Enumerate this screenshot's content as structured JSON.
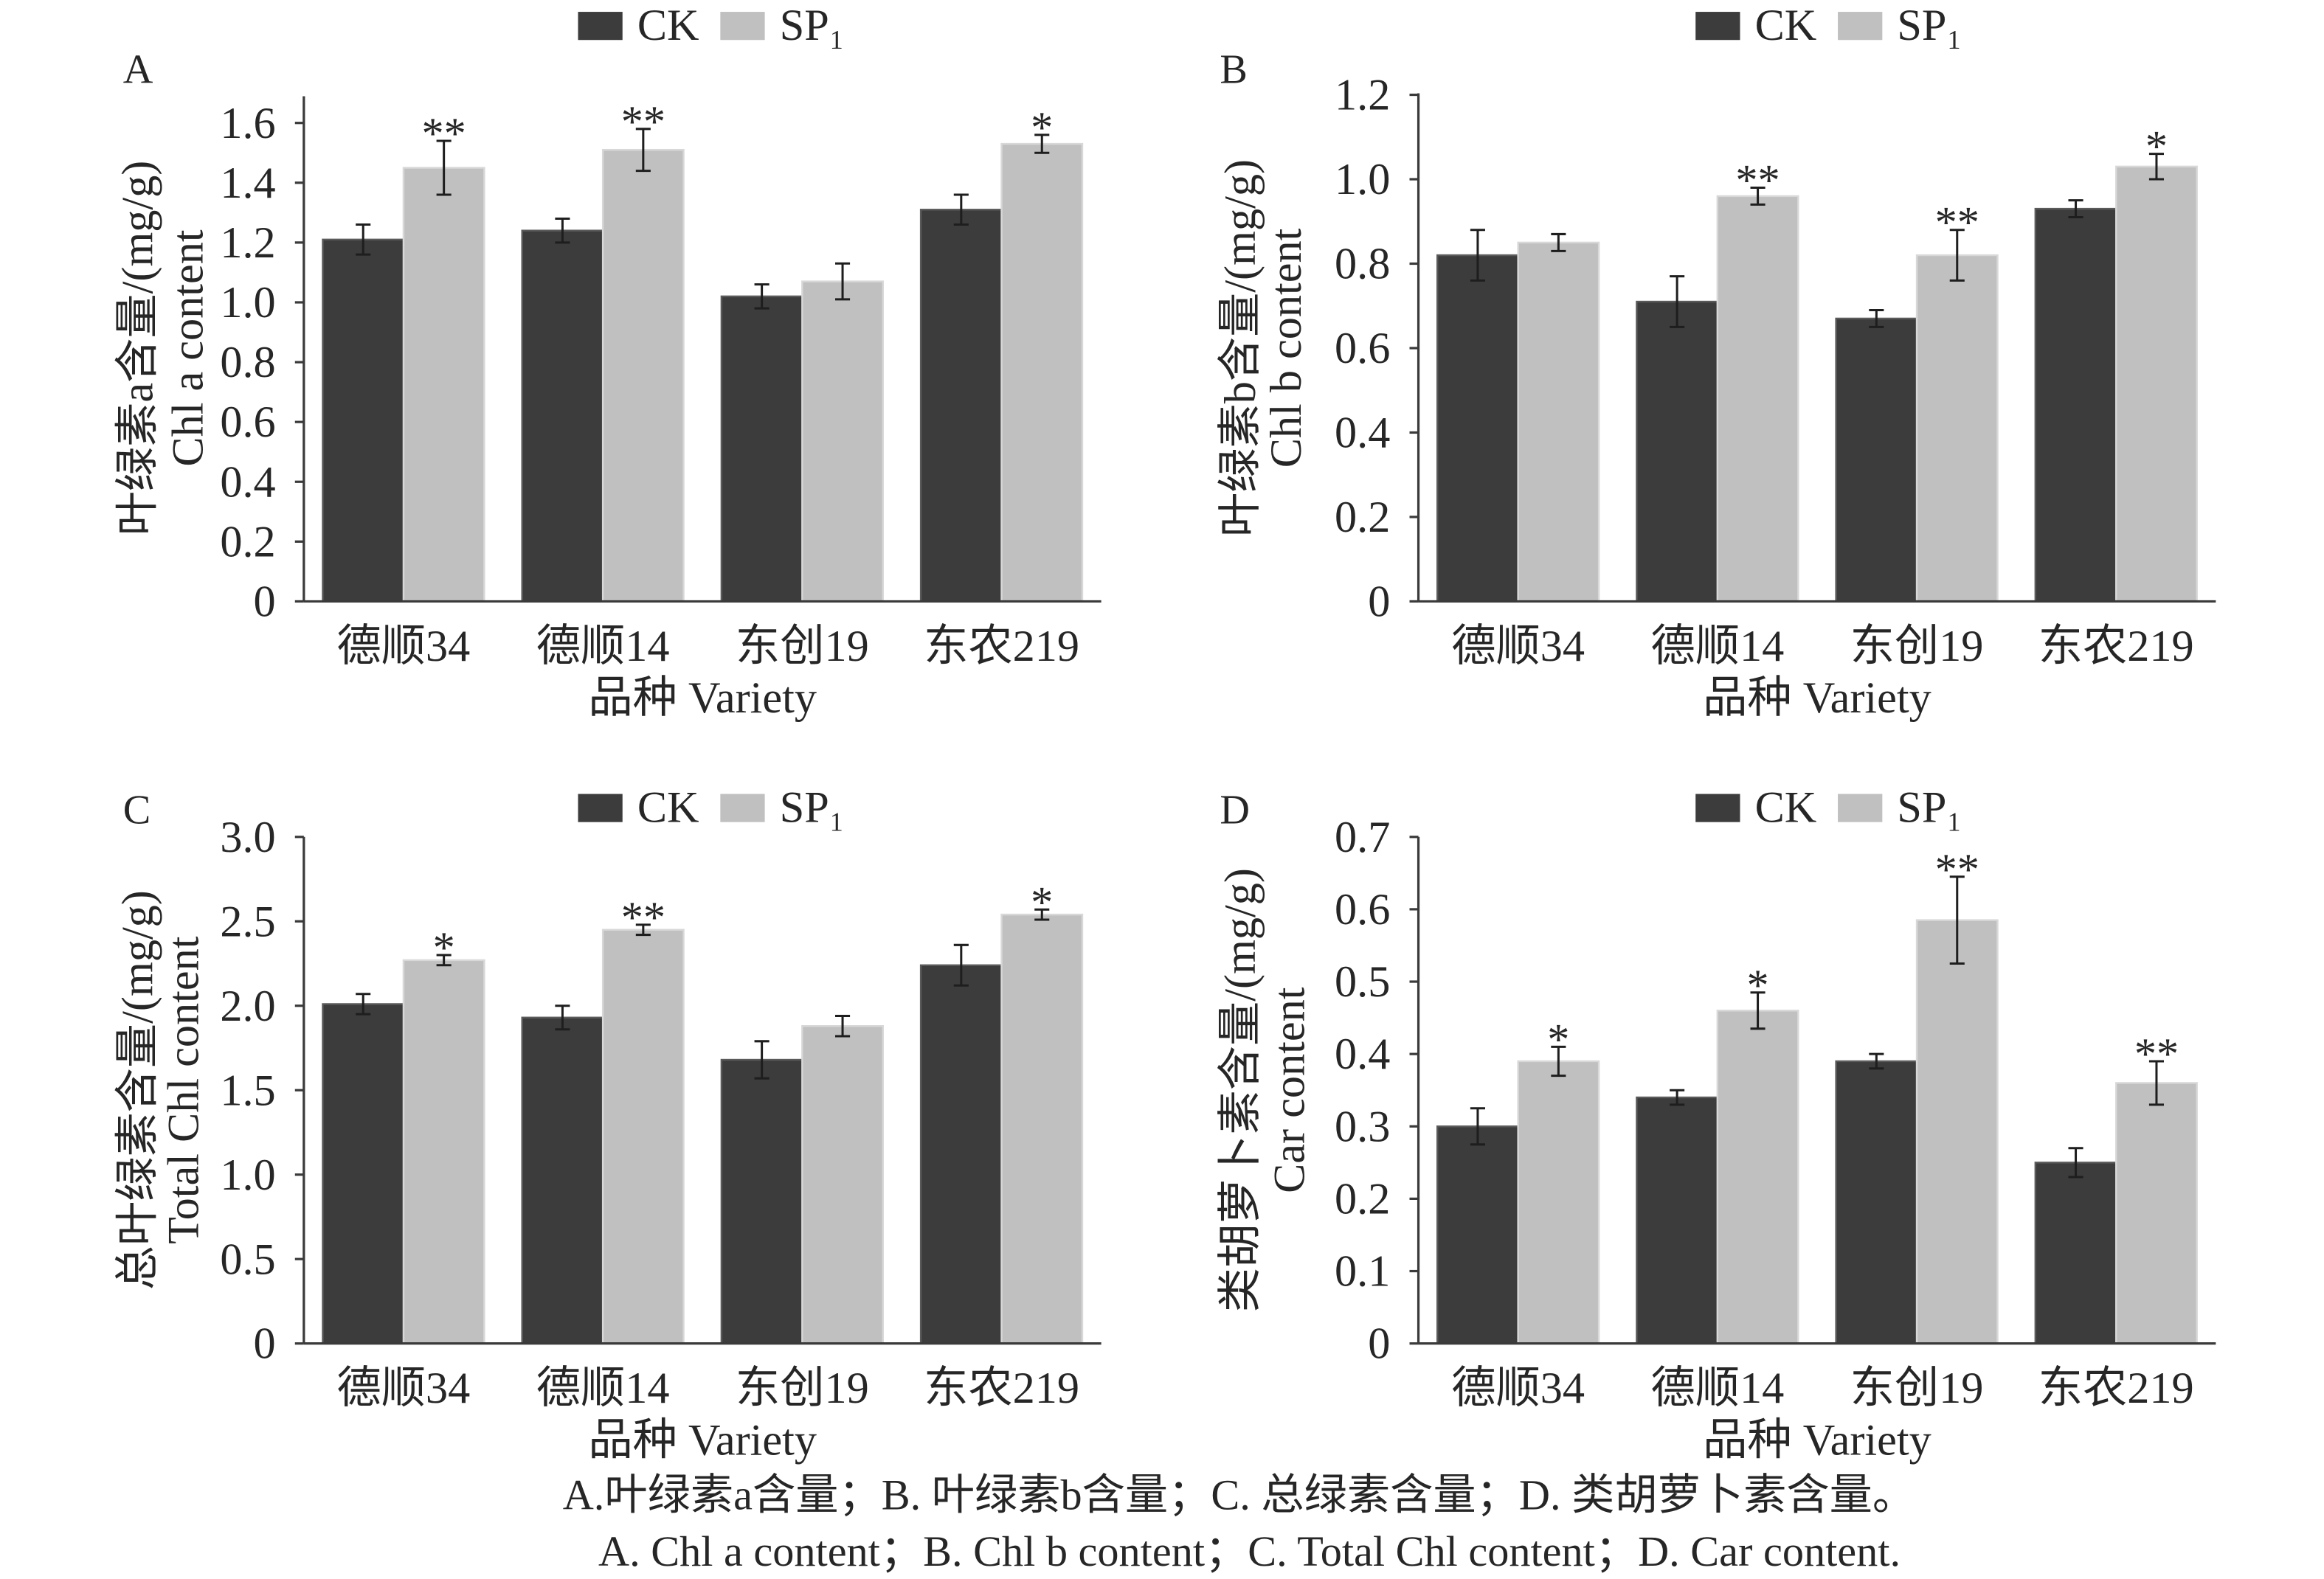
{
  "figure": {
    "caption_zh": "A.叶绿素a含量；B. 叶绿素b含量；C. 总绿素含量；D. 类胡萝卜素含量。",
    "caption_en": "A. Chl a content；B. Chl b content；C. Total Chl content；D. Car content."
  },
  "colors": {
    "CK": "#3c3c3c",
    "SP1": "#c0c0c0",
    "CK_edge": "#5a5a5a",
    "SP1_edge": "#d8d8d8"
  },
  "chart_data": [
    {
      "panel": "A",
      "type": "bar",
      "categories": [
        "德顺34",
        "德顺14",
        "东创19",
        "东农219"
      ],
      "series": [
        {
          "name": "CK",
          "values": [
            1.21,
            1.24,
            1.02,
            1.31
          ],
          "errors": [
            0.05,
            0.04,
            0.04,
            0.05
          ]
        },
        {
          "name": "SP₁",
          "values": [
            1.45,
            1.51,
            1.07,
            1.53
          ],
          "errors": [
            0.09,
            0.07,
            0.06,
            0.03
          ]
        }
      ],
      "significance": [
        "**",
        "**",
        "",
        "*"
      ],
      "xlabel": "品种 Variety",
      "ylabel": [
        "叶绿素a含量/(mg/g)",
        "Chl a content"
      ],
      "ylim": [
        0,
        1.6
      ],
      "yticks": [
        0,
        0.2,
        0.4,
        0.6,
        0.8,
        1.0,
        1.2,
        1.4,
        1.6
      ],
      "ytick_labels": [
        "0",
        "0.2",
        "0.4",
        "0.6",
        "0.8",
        "1.0",
        "1.2",
        "1.4",
        "1.6"
      ],
      "legend": "top",
      "grid": false
    },
    {
      "panel": "B",
      "type": "bar",
      "categories": [
        "德顺34",
        "德顺14",
        "东创19",
        "东农219"
      ],
      "series": [
        {
          "name": "CK",
          "values": [
            0.82,
            0.71,
            0.67,
            0.93
          ],
          "errors": [
            0.06,
            0.06,
            0.02,
            0.02
          ]
        },
        {
          "name": "SP₁",
          "values": [
            0.85,
            0.96,
            0.82,
            1.03
          ],
          "errors": [
            0.02,
            0.02,
            0.06,
            0.03
          ]
        }
      ],
      "significance": [
        "",
        "**",
        "**",
        "*"
      ],
      "xlabel": "品种 Variety",
      "ylabel": [
        "叶绿素b含量/(mg/g)",
        "Chl b content"
      ],
      "ylim": [
        0,
        1.2
      ],
      "yticks": [
        0,
        0.2,
        0.4,
        0.6,
        0.8,
        1.0,
        1.2
      ],
      "ytick_labels": [
        "0",
        "0.2",
        "0.4",
        "0.6",
        "0.8",
        "1.0",
        "1.2"
      ],
      "legend": "top",
      "grid": false
    },
    {
      "panel": "C",
      "type": "bar",
      "categories": [
        "德顺34",
        "德顺14",
        "东创19",
        "东农219"
      ],
      "series": [
        {
          "name": "CK",
          "values": [
            2.01,
            1.93,
            1.68,
            2.24
          ],
          "errors": [
            0.06,
            0.07,
            0.11,
            0.12
          ]
        },
        {
          "name": "SP₁",
          "values": [
            2.27,
            2.45,
            1.88,
            2.54
          ],
          "errors": [
            0.03,
            0.03,
            0.06,
            0.03
          ]
        }
      ],
      "significance": [
        "*",
        "**",
        "",
        "*"
      ],
      "xlabel": "品种 Variety",
      "ylabel": [
        "总叶绿素含量/(mg/g)",
        "Total Chl content"
      ],
      "ylim": [
        0,
        3.0
      ],
      "yticks": [
        0,
        0.5,
        1.0,
        1.5,
        2.0,
        2.5,
        3.0
      ],
      "ytick_labels": [
        "0",
        "0.5",
        "1.0",
        "1.5",
        "2.0",
        "2.5",
        "3.0"
      ],
      "legend": "top",
      "grid": false
    },
    {
      "panel": "D",
      "type": "bar",
      "categories": [
        "德顺34",
        "德顺14",
        "东创19",
        "东农219"
      ],
      "series": [
        {
          "name": "CK",
          "values": [
            0.3,
            0.34,
            0.39,
            0.25
          ],
          "errors": [
            0.025,
            0.01,
            0.01,
            0.02
          ]
        },
        {
          "name": "SP₁",
          "values": [
            0.39,
            0.46,
            0.585,
            0.36
          ],
          "errors": [
            0.02,
            0.025,
            0.06,
            0.03
          ]
        }
      ],
      "significance": [
        "*",
        "*",
        "**",
        "**"
      ],
      "xlabel": "品种 Variety",
      "ylabel": [
        "类胡萝卜素含量/(mg/g)",
        "Car content"
      ],
      "ylim": [
        0,
        0.7
      ],
      "yticks": [
        0,
        0.1,
        0.2,
        0.3,
        0.4,
        0.5,
        0.6,
        0.7
      ],
      "ytick_labels": [
        "0",
        "0.1",
        "0.2",
        "0.3",
        "0.4",
        "0.5",
        "0.6",
        "0.7"
      ],
      "legend": "top",
      "grid": false
    }
  ]
}
